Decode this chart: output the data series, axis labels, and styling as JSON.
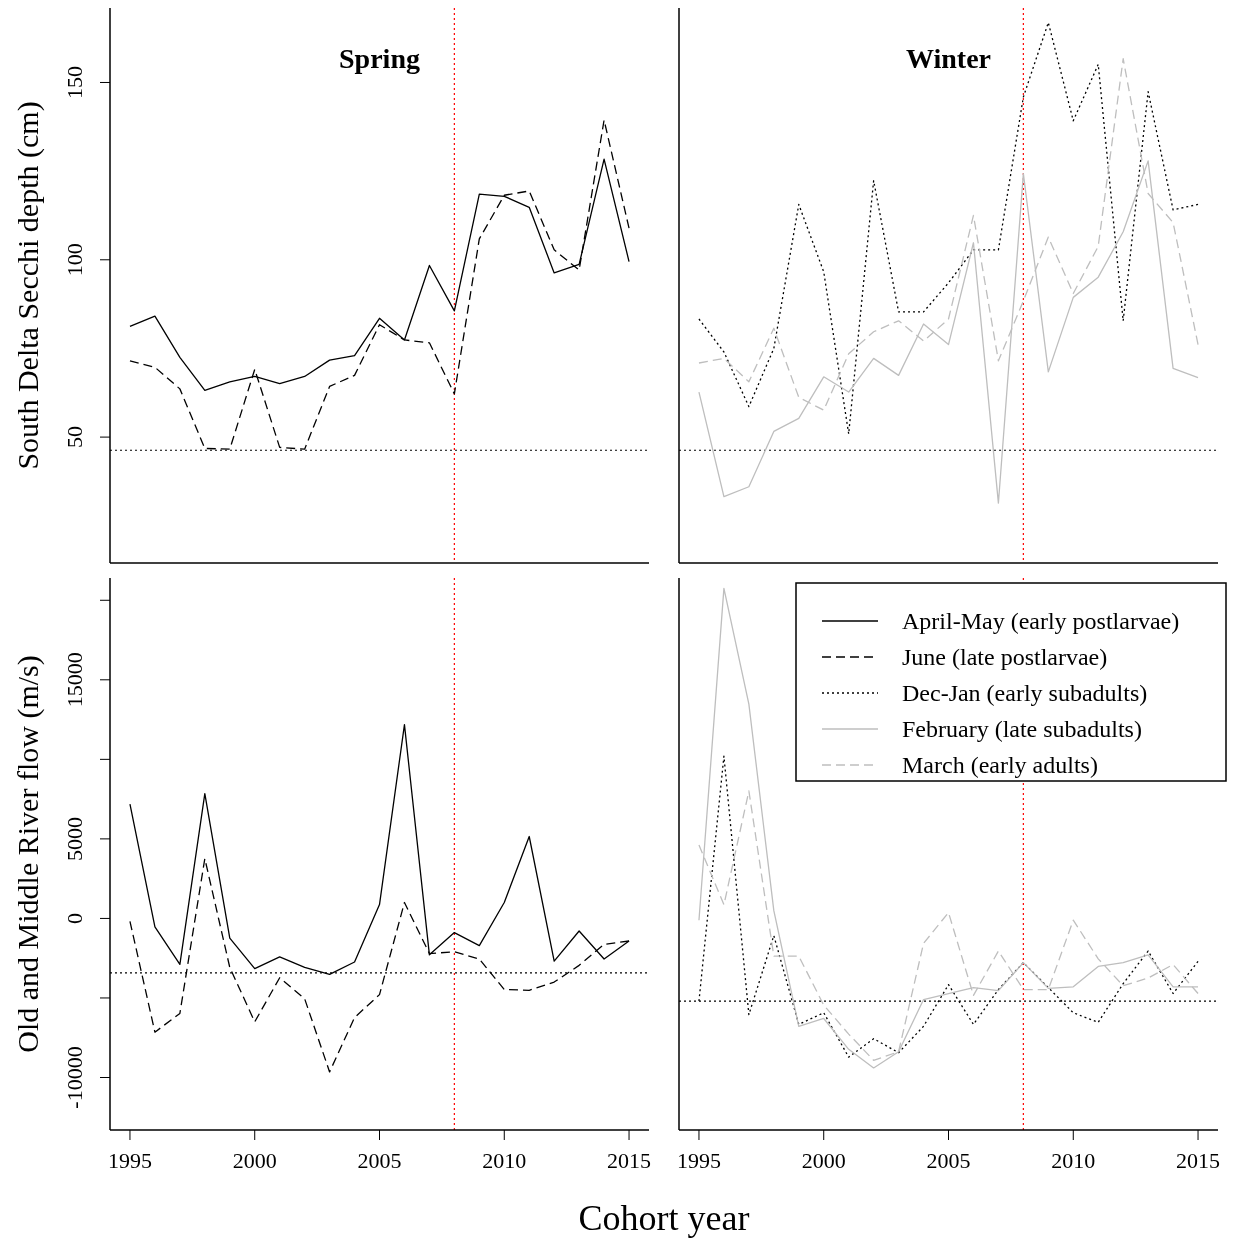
{
  "chart_data": [
    {
      "type": "line",
      "title": "Spring",
      "ylabel": "South Delta Secchi depth (cm)",
      "x": [
        1995,
        1996,
        1997,
        1998,
        1999,
        2000,
        2001,
        2002,
        2003,
        2004,
        2005,
        2006,
        2007,
        2008,
        2009,
        2010,
        2011,
        2012,
        2013,
        2014,
        2015
      ],
      "xlim": [
        1994.2,
        2015.8
      ],
      "ylim": [
        14.5,
        171
      ],
      "yticks": [
        50,
        100,
        150
      ],
      "tick_labels": "y",
      "series": [
        {
          "color": "#000000",
          "line_style": "solid",
          "values": [
            81.2,
            84.1,
            72.5,
            63.2,
            65.6,
            67.1,
            65.1,
            67.1,
            71.7,
            73.0,
            83.5,
            77.4,
            98.4,
            85.6,
            118.5,
            117.9,
            114.8,
            96.3,
            98.7,
            128.4,
            99.5
          ]
        },
        {
          "color": "#000000",
          "line_style": "dashed",
          "values": [
            71.5,
            69.7,
            63.6,
            46.8,
            46.6,
            69.1,
            47.1,
            46.6,
            64.3,
            67.4,
            81.7,
            77.4,
            76.6,
            62.2,
            105.9,
            118.2,
            119.4,
            102.8,
            97.1,
            139.4,
            108.9
          ]
        }
      ],
      "ref_lines": [
        {
          "axis": "y",
          "value": 46.3,
          "color": "#000000",
          "line_style": "dotted"
        },
        {
          "axis": "x",
          "value": 2008,
          "color": "#ff0000",
          "line_style": "dotted"
        }
      ]
    },
    {
      "type": "line",
      "title": "Winter",
      "x": [
        1995,
        1996,
        1997,
        1998,
        1999,
        2000,
        2001,
        2002,
        2003,
        2004,
        2005,
        2006,
        2007,
        2008,
        2009,
        2010,
        2011,
        2012,
        2013,
        2014,
        2015
      ],
      "xlim": [
        1994.2,
        2015.8
      ],
      "ylim": [
        14.5,
        171
      ],
      "tick_labels": false,
      "series": [
        {
          "color": "#000000",
          "line_style": "dotted",
          "values": [
            83.3,
            74.0,
            58.6,
            75.0,
            115.6,
            96.6,
            50.9,
            122.3,
            85.3,
            85.3,
            93.5,
            102.8,
            102.8,
            145.9,
            166.9,
            139.2,
            155.1,
            82.8,
            147.4,
            114.1,
            115.6
          ]
        },
        {
          "color": "#bebebe",
          "line_style": "solid",
          "values": [
            62.7,
            33.2,
            36.0,
            51.6,
            55.3,
            67.0,
            62.7,
            72.2,
            67.4,
            81.9,
            76.1,
            104.8,
            31.4,
            124.3,
            68.4,
            89.4,
            95.1,
            107.9,
            127.9,
            69.4,
            66.8
          ]
        },
        {
          "color": "#bebebe",
          "line_style": "dashed",
          "values": [
            70.9,
            72.2,
            65.6,
            80.7,
            61.2,
            57.6,
            73.5,
            79.7,
            82.8,
            77.1,
            83.3,
            112.5,
            71.5,
            88.4,
            106.4,
            90.5,
            103.8,
            156.7,
            118.7,
            110.5,
            76.1
          ]
        }
      ],
      "ref_lines": [
        {
          "axis": "y",
          "value": 46.3,
          "color": "#000000",
          "line_style": "dotted"
        },
        {
          "axis": "x",
          "value": 2008,
          "color": "#ff0000",
          "line_style": "dotted"
        }
      ]
    },
    {
      "type": "line",
      "ylabel": "Old and Middle River flow (m/s)",
      "xlabel": "Cohort year",
      "x": [
        1995,
        1996,
        1997,
        1998,
        1999,
        2000,
        2001,
        2002,
        2003,
        2004,
        2005,
        2006,
        2007,
        2008,
        2009,
        2010,
        2011,
        2012,
        2013,
        2014,
        2015
      ],
      "xlim": [
        1994.2,
        2015.8
      ],
      "ylim": [
        -13300,
        21400
      ],
      "xticks": [
        1995,
        2000,
        2005,
        2010,
        2015
      ],
      "yticks": [
        -10000,
        {
          "value": -5000,
          "label": null
        },
        0,
        5000,
        {
          "value": 10000,
          "label": null
        },
        15000,
        {
          "value": 20000,
          "label": null
        }
      ],
      "series": [
        {
          "name": "April-May (early postlarvae)",
          "color": "#000000",
          "line_style": "solid",
          "values": [
            7180,
            -530,
            -2890,
            7840,
            -1240,
            -3160,
            -2420,
            -3080,
            -3520,
            -2740,
            870,
            12180,
            -2290,
            -890,
            -1710,
            1000,
            5150,
            -2680,
            -790,
            -2550,
            -1420
          ]
        },
        {
          "name": "June (late postlarvae)",
          "color": "#000000",
          "line_style": "dashed",
          "values": [
            -180,
            -7150,
            -5970,
            3760,
            -3080,
            -6500,
            -3730,
            -5050,
            -9650,
            -6230,
            -4790,
            1000,
            -2210,
            -2100,
            -2550,
            -4470,
            -4520,
            -4000,
            -2950,
            -1630,
            -1420
          ]
        }
      ],
      "ref_lines": [
        {
          "axis": "y",
          "value": -3420,
          "color": "#000000",
          "line_style": "dotted"
        },
        {
          "axis": "x",
          "value": 2008,
          "color": "#ff0000",
          "line_style": "dotted"
        }
      ]
    },
    {
      "type": "line",
      "x": [
        1995,
        1996,
        1997,
        1998,
        1999,
        2000,
        2001,
        2002,
        2003,
        2004,
        2005,
        2006,
        2007,
        2008,
        2009,
        2010,
        2011,
        2012,
        2013,
        2014,
        2015
      ],
      "xlim": [
        1994.2,
        2015.8
      ],
      "ylim": [
        -13300,
        21400
      ],
      "xticks": [
        1995,
        2000,
        2005,
        2010,
        2015
      ],
      "tick_labels": "x",
      "legend": "top right",
      "series": [
        {
          "name": "Dec-Jan (early subadults)",
          "color": "#000000",
          "line_style": "dotted",
          "values": [
            -5200,
            10200,
            -6050,
            -1080,
            -6660,
            -5930,
            -8720,
            -7560,
            -8440,
            -6780,
            -4160,
            -6660,
            -4470,
            -2780,
            -4350,
            -5930,
            -6530,
            -4100,
            -2050,
            -4720,
            -2700
          ]
        },
        {
          "name": "February (late subadults)",
          "color": "#bebebe",
          "line_style": "solid",
          "values": [
            -110,
            20750,
            13470,
            490,
            -6780,
            -6290,
            -8230,
            -9400,
            -8380,
            -5100,
            -4720,
            -4350,
            -4540,
            -2780,
            -4400,
            -4300,
            -3020,
            -2780,
            -2290,
            -4300,
            -4300
          ]
        },
        {
          "name": "March (early adults)",
          "color": "#bebebe",
          "line_style": "dashed",
          "values": [
            4620,
            860,
            8010,
            -2370,
            -2370,
            -5450,
            -7270,
            -8920,
            -8380,
            -1570,
            370,
            -4840,
            -2050,
            -4470,
            -4470,
            -110,
            -2540,
            -4230,
            -3750,
            -2900,
            -4720
          ]
        }
      ],
      "ref_lines": [
        {
          "axis": "y",
          "value": -5200,
          "color": "#000000",
          "line_style": "dotted"
        },
        {
          "axis": "x",
          "value": 2008,
          "color": "#ff0000",
          "line_style": "dotted"
        }
      ]
    }
  ]
}
